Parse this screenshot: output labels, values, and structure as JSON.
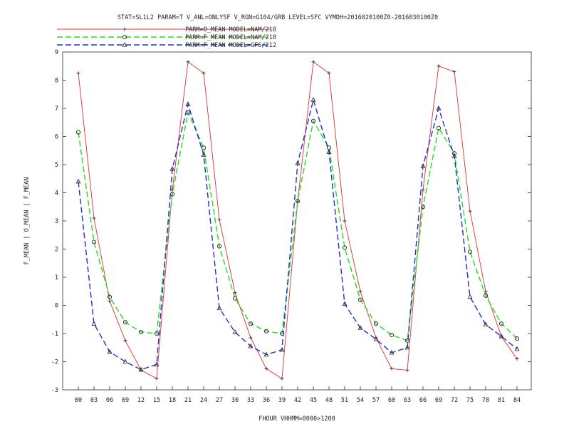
{
  "chart_data": {
    "type": "line",
    "title": "STAT=SL1L2 PARAM=T V_ANL=ONLYSF V_RGN=G104/GRB LEVEL=SFC VYMDH=2016020100Z0-2016030100Z0",
    "xlabel": "FHOUR VHHMM=0000>1200",
    "ylabel": "F_MEAN | O_MEAN | F_MEAN",
    "categories": [
      "00",
      "03",
      "06",
      "09",
      "12",
      "15",
      "18",
      "21",
      "24",
      "27",
      "30",
      "33",
      "36",
      "39",
      "42",
      "45",
      "48",
      "51",
      "54",
      "57",
      "60",
      "63",
      "66",
      "69",
      "72",
      "75",
      "78",
      "81",
      "84"
    ],
    "ylim": [
      -3,
      9
    ],
    "yticks": [
      "-3",
      "-2",
      "-1",
      "0",
      "1",
      "2",
      "3",
      "4",
      "5",
      "6",
      "7",
      "8",
      "9"
    ],
    "grid": false,
    "legend_position": "top-left",
    "series": [
      {
        "name": "PARM=O_MEAN MODEL=NAM/218",
        "color": "#e03030",
        "dash": "solid",
        "marker": "plus",
        "values": [
          8.25,
          3.1,
          0.15,
          -1.25,
          -2.3,
          -2.6,
          4.1,
          8.65,
          8.25,
          3.05,
          0.45,
          -1.15,
          -2.25,
          -2.6,
          3.7,
          8.65,
          8.25,
          3.0,
          0.5,
          -1.15,
          -2.25,
          -2.3,
          4.1,
          8.5,
          8.3,
          3.35,
          0.5,
          -1.1,
          -1.9
        ]
      },
      {
        "name": "PARM=F_MEAN MODEL=NAM/218",
        "color": "#22dd22",
        "dash": "dashed",
        "marker": "circle",
        "values": [
          6.15,
          2.25,
          0.3,
          -0.6,
          -0.95,
          -1.0,
          3.95,
          6.85,
          5.6,
          2.1,
          0.25,
          -0.65,
          -0.92,
          -1.0,
          3.7,
          6.55,
          5.6,
          2.05,
          0.2,
          -0.65,
          -1.05,
          -1.25,
          3.5,
          6.3,
          5.4,
          1.9,
          0.35,
          -0.65,
          -1.18
        ]
      },
      {
        "name": "PARM=F_MEAN MODEL=GFS/212",
        "color": "#2030d0",
        "dash": "dashed",
        "marker": "triangle",
        "values": [
          4.4,
          -0.65,
          -1.65,
          -2.0,
          -2.28,
          -2.1,
          4.85,
          7.15,
          5.35,
          -0.1,
          -0.95,
          -1.45,
          -1.75,
          -1.58,
          5.05,
          7.3,
          5.45,
          0.05,
          -0.8,
          -1.2,
          -1.68,
          -1.5,
          4.95,
          7.0,
          5.3,
          0.3,
          -0.68,
          -1.1,
          -1.55
        ]
      }
    ]
  }
}
